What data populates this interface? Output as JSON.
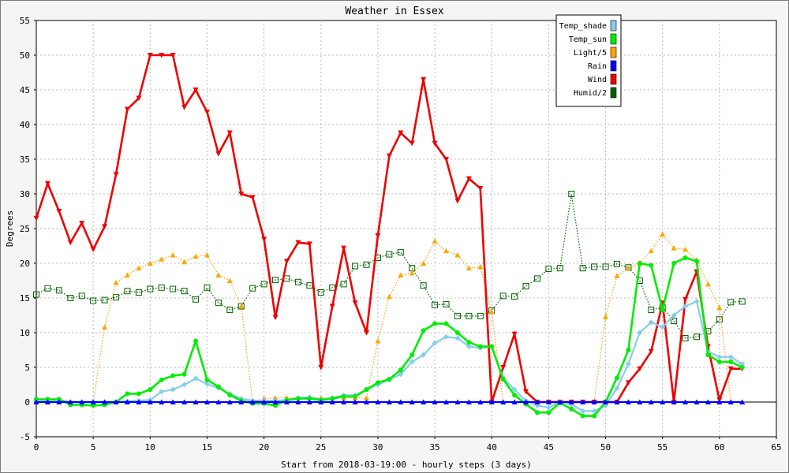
{
  "chart_data": {
    "type": "line",
    "title": "Weather in Essex",
    "xlabel": "Start from 2018-03-19:00 - hourly steps (3 days)",
    "ylabel": "Degrees",
    "xlim": [
      0,
      65
    ],
    "ylim": [
      -5,
      55
    ],
    "xticks": [
      0,
      5,
      10,
      15,
      20,
      25,
      30,
      35,
      40,
      45,
      50,
      55,
      60,
      65
    ],
    "yticks": [
      -5,
      0,
      5,
      10,
      15,
      20,
      25,
      30,
      35,
      40,
      45,
      50,
      55
    ],
    "grid": true,
    "legend_position": "top-right",
    "series": [
      {
        "name": "Temp_shade",
        "color": "#87ceeb",
        "marker": "diamond",
        "line": "solid",
        "values": [
          0.3,
          0.3,
          0.3,
          0,
          0,
          0,
          0,
          0,
          0.1,
          0.2,
          0.3,
          1.5,
          1.8,
          2.5,
          3.4,
          2.6,
          2.0,
          1.2,
          0.5,
          0.2,
          0.2,
          0.2,
          0.3,
          0.6,
          0.7,
          0.4,
          0.6,
          1.0,
          1.0,
          1.8,
          2.5,
          3.2,
          4.0,
          5.8,
          6.8,
          8.5,
          9.4,
          9.2,
          8.0,
          7.8,
          8.0,
          3.5,
          1.8,
          0.2,
          -0.5,
          -0.8,
          0.0,
          -0.3,
          -1.3,
          -1.3,
          -0.5,
          2.0,
          5.5,
          10.0,
          11.5,
          10.8,
          12.5,
          13.8,
          14.5,
          7.3,
          6.5,
          6.5,
          5.5
        ]
      },
      {
        "name": "Temp_sun",
        "color": "#00ee00",
        "marker": "circle",
        "line": "solid",
        "values": [
          0.4,
          0.4,
          0.4,
          -0.4,
          -0.4,
          -0.5,
          -0.4,
          0.0,
          1.2,
          1.2,
          1.8,
          3.2,
          3.8,
          4.0,
          8.8,
          3.2,
          2.2,
          1.0,
          0.2,
          -0.2,
          -0.2,
          -0.5,
          0.3,
          0.5,
          0.5,
          0.3,
          0.5,
          0.8,
          0.8,
          1.8,
          2.8,
          3.3,
          4.6,
          6.8,
          10.3,
          11.3,
          11.3,
          10.0,
          8.6,
          8.0,
          8.0,
          3.3,
          1.0,
          -0.3,
          -1.5,
          -1.5,
          -0.1,
          -1.0,
          -2.0,
          -2.0,
          0.0,
          3.5,
          7.5,
          20.0,
          19.7,
          13.3,
          20.0,
          20.8,
          20.3,
          6.8,
          5.8,
          5.8,
          5.0
        ]
      },
      {
        "name": "Light/5",
        "color": "#ffa500",
        "marker": "triangle-up",
        "line": "dotted",
        "values": [
          0,
          0,
          0,
          0,
          0,
          0,
          10.8,
          17.2,
          18.3,
          19.3,
          20.0,
          20.6,
          21.2,
          20.2,
          21.0,
          21.2,
          18.3,
          17.5,
          13.8,
          0,
          0.5,
          0.6,
          0.6,
          0.6,
          0.6,
          0.6,
          0.6,
          0.6,
          0.6,
          0.6,
          8.8,
          15.2,
          18.3,
          18.6,
          20.0,
          23.2,
          21.8,
          21.2,
          19.3,
          19.5,
          13.0,
          0,
          0,
          0,
          0,
          0,
          0,
          0,
          0,
          0,
          12.3,
          18.2,
          19.3,
          20.0,
          21.8,
          24.2,
          22.2,
          22.0,
          20.5,
          17.0,
          13.6,
          0,
          0
        ]
      },
      {
        "name": "Rain",
        "color": "#0000ff",
        "marker": "triangle-up",
        "line": "solid",
        "values": [
          0,
          0,
          0,
          0,
          0,
          0,
          0,
          0,
          0,
          0,
          0,
          0,
          0,
          0,
          0,
          0,
          0,
          0,
          0,
          0,
          0,
          0,
          0,
          0,
          0,
          0,
          0,
          0,
          0,
          0,
          0,
          0,
          0,
          0,
          0,
          0,
          0,
          0,
          0,
          0,
          0,
          0,
          0,
          0,
          0,
          0,
          0,
          0,
          0,
          0,
          0,
          0,
          0,
          0,
          0,
          0,
          0,
          0,
          0,
          0,
          0,
          0,
          0
        ]
      },
      {
        "name": "Wind",
        "color": "#ee0000",
        "marker": "triangle-down",
        "line": "solid",
        "values": [
          26.5,
          31.5,
          27.5,
          23.0,
          25.8,
          22.0,
          25.3,
          32.8,
          42.2,
          43.8,
          50.0,
          50.0,
          50.0,
          42.5,
          45.0,
          41.8,
          35.8,
          38.8,
          30.0,
          29.5,
          23.5,
          12.2,
          20.3,
          23.0,
          22.8,
          5.0,
          13.8,
          22.2,
          14.3,
          10.0,
          24.0,
          35.5,
          38.8,
          37.3,
          46.5,
          37.3,
          35.0,
          29.0,
          32.2,
          30.8,
          0,
          5.0,
          9.8,
          1.5,
          0,
          0,
          0,
          0,
          0,
          0,
          0,
          0,
          2.8,
          4.8,
          7.3,
          14.3,
          0,
          14.8,
          18.8,
          8.0,
          0.3,
          4.8,
          4.8
        ]
      },
      {
        "name": "Humid/2",
        "color": "#006400",
        "marker": "square",
        "line": "dotted",
        "values": [
          15.5,
          16.4,
          16.1,
          15.0,
          15.3,
          14.6,
          14.7,
          15.1,
          16.0,
          15.8,
          16.3,
          16.5,
          16.3,
          16.0,
          14.8,
          16.5,
          14.3,
          13.3,
          13.8,
          16.4,
          17.0,
          17.6,
          17.8,
          17.3,
          16.8,
          15.8,
          16.5,
          17.0,
          19.6,
          19.8,
          20.8,
          21.3,
          21.6,
          19.3,
          16.8,
          14.0,
          14.1,
          12.4,
          12.4,
          12.4,
          13.2,
          15.3,
          15.2,
          16.7,
          17.8,
          19.2,
          19.3,
          30.0,
          19.3,
          19.5,
          19.5,
          19.9,
          19.4,
          17.5,
          13.3,
          13.6,
          11.7,
          9.2,
          9.4,
          10.2,
          11.9,
          14.4,
          14.5
        ]
      }
    ]
  }
}
